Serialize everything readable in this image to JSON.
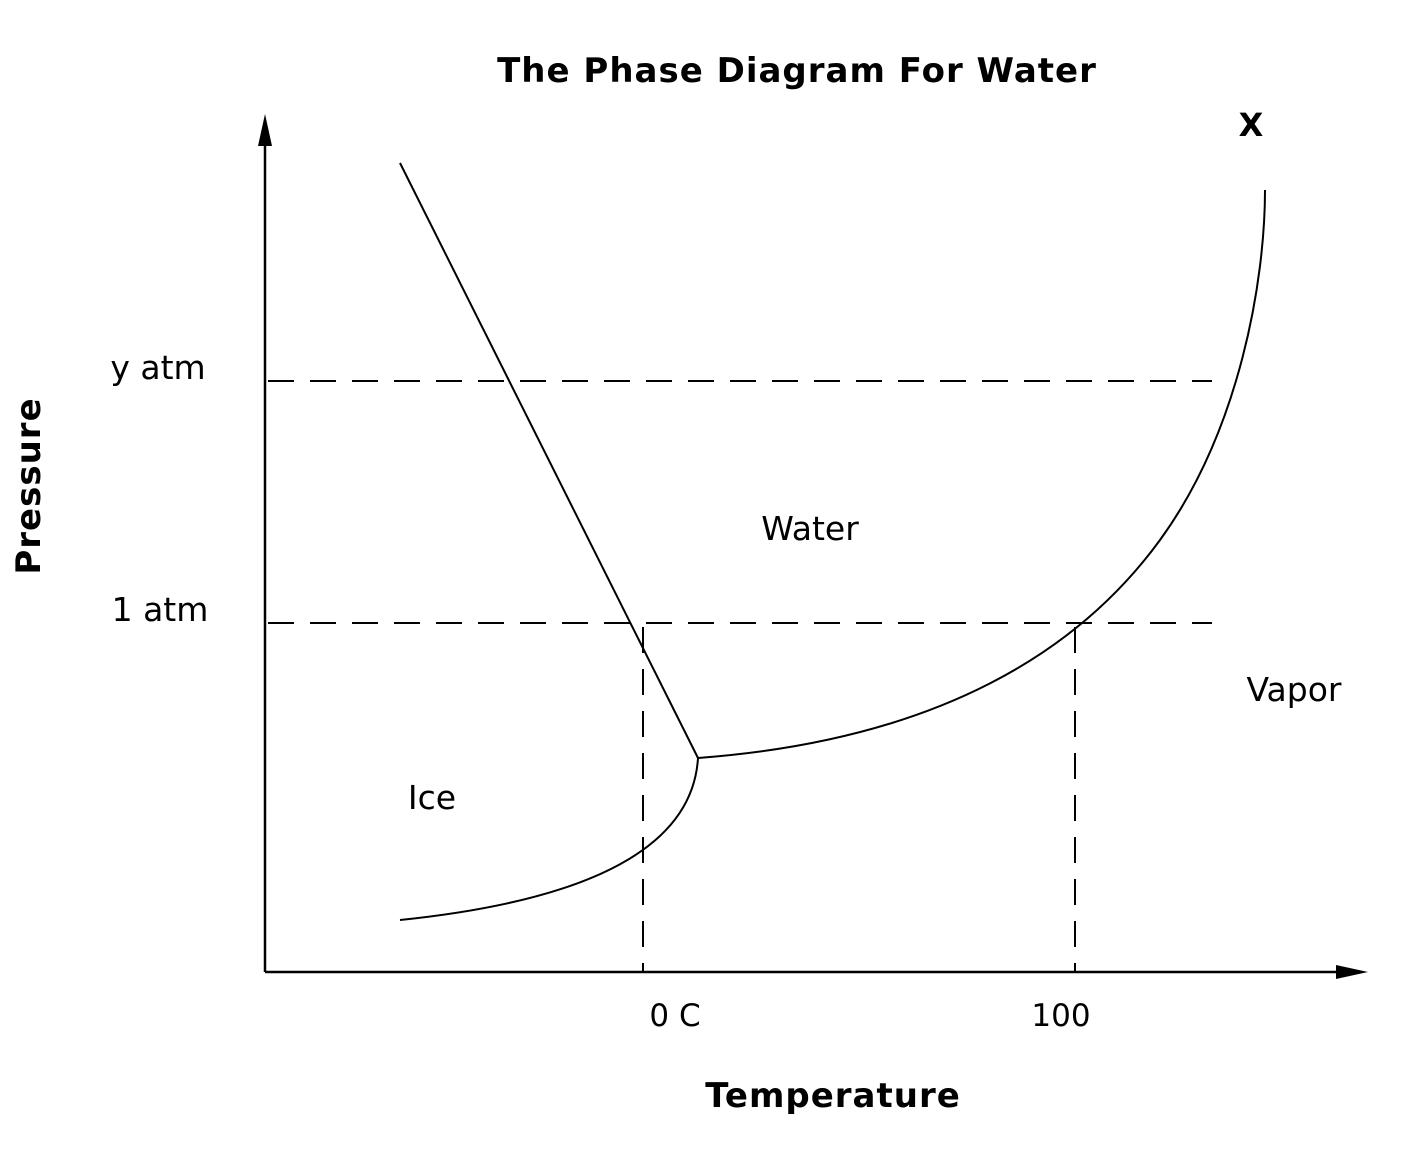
{
  "title": "The Phase Diagram For Water",
  "axes": {
    "x_label": "Temperature",
    "y_label": "Pressure",
    "x_ticks": [
      "0 C",
      "100"
    ],
    "y_ticks": [
      "y atm",
      "1 atm"
    ]
  },
  "regions": {
    "ice": "Ice",
    "water": "Water",
    "vapor": "Vapor"
  },
  "marker": "X",
  "colors": {
    "ink": "#000000",
    "background": "#ffffff"
  }
}
